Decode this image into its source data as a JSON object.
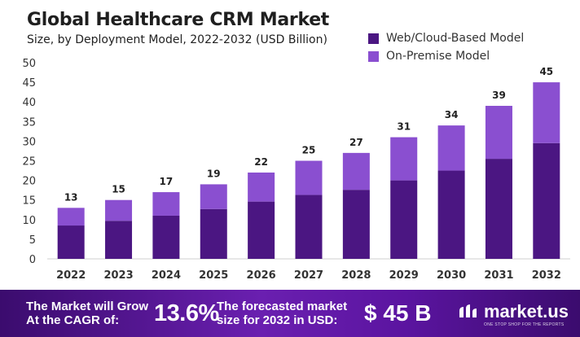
{
  "title": "Global Healthcare CRM Market",
  "subtitle": "Size, by Deployment Model, 2022-2032 (USD Billion)",
  "colors": {
    "web": "#4b1682",
    "onprem": "#8a4fd0",
    "footer": "#5b14a0"
  },
  "chart_data": {
    "type": "bar",
    "stacked": true,
    "categories": [
      "2022",
      "2023",
      "2024",
      "2025",
      "2026",
      "2027",
      "2028",
      "2029",
      "2030",
      "2031",
      "2032"
    ],
    "series": [
      {
        "name": "Web/Cloud-Based Model",
        "values": [
          8.5,
          9.7,
          11.0,
          12.7,
          14.6,
          16.3,
          17.6,
          20.0,
          22.5,
          25.5,
          29.5
        ]
      },
      {
        "name": "On-Premise  Model",
        "values": [
          4.5,
          5.3,
          6.0,
          6.3,
          7.4,
          8.7,
          9.4,
          11.0,
          11.5,
          13.5,
          15.5
        ]
      }
    ],
    "totals": [
      "13",
      "15",
      "17",
      "19",
      "22",
      "25",
      "27",
      "31",
      "34",
      "39",
      "45"
    ],
    "ylim": [
      0,
      50
    ],
    "yticks": [
      0,
      5,
      10,
      15,
      20,
      25,
      30,
      35,
      40,
      45,
      50
    ],
    "grid": false,
    "legend_position": "top-right"
  },
  "footer": {
    "grow_line1": "The Market will Grow",
    "grow_line2": "At the CAGR of:",
    "cagr": "13.6%",
    "forecast_line1": "The forecasted market",
    "forecast_line2": "size for 2032 in USD:",
    "value": "$ 45 B",
    "logo": "market.us",
    "logo_tagline": "ONE STOP SHOP FOR THE REPORTS"
  }
}
